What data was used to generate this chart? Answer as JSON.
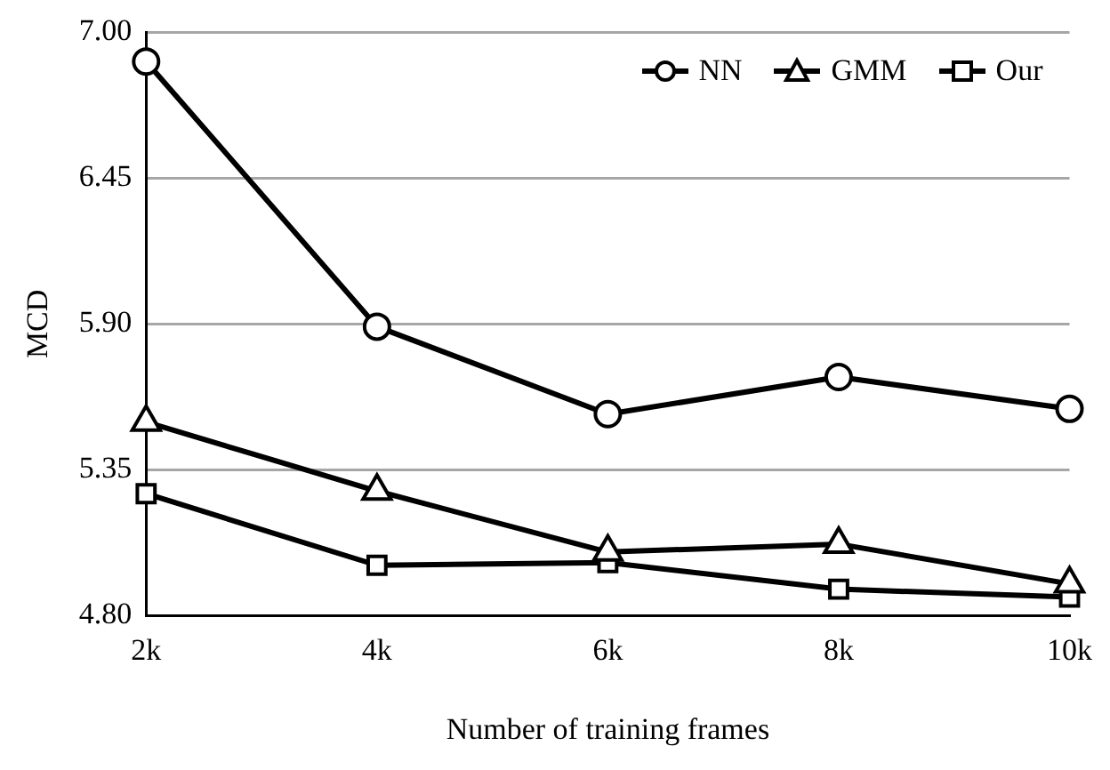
{
  "chart_data": {
    "type": "line",
    "xlabel": "Number of training frames",
    "ylabel": "MCD",
    "categories": [
      "2k",
      "4k",
      "6k",
      "8k",
      "10k"
    ],
    "series": [
      {
        "name": "NN",
        "color": "#000000",
        "marker": "circle",
        "values": [
          6.89,
          5.89,
          5.56,
          5.7,
          5.58
        ]
      },
      {
        "name": "GMM",
        "color": "#000000",
        "marker": "triangle",
        "values": [
          5.53,
          5.27,
          5.04,
          5.07,
          4.92
        ]
      },
      {
        "name": "Our",
        "color": "#000000",
        "marker": "square",
        "values": [
          5.26,
          4.99,
          5.0,
          4.9,
          4.87
        ]
      }
    ],
    "ylim": [
      4.8,
      7.0
    ],
    "yticks": [
      {
        "value": 4.8,
        "label": "4.80"
      },
      {
        "value": 5.35,
        "label": "5.35"
      },
      {
        "value": 5.9,
        "label": "5.90"
      },
      {
        "value": 6.45,
        "label": "6.45"
      },
      {
        "value": 7.0,
        "label": "7.00"
      }
    ],
    "grid": "y",
    "legend": "top right",
    "line_style": "solid"
  }
}
